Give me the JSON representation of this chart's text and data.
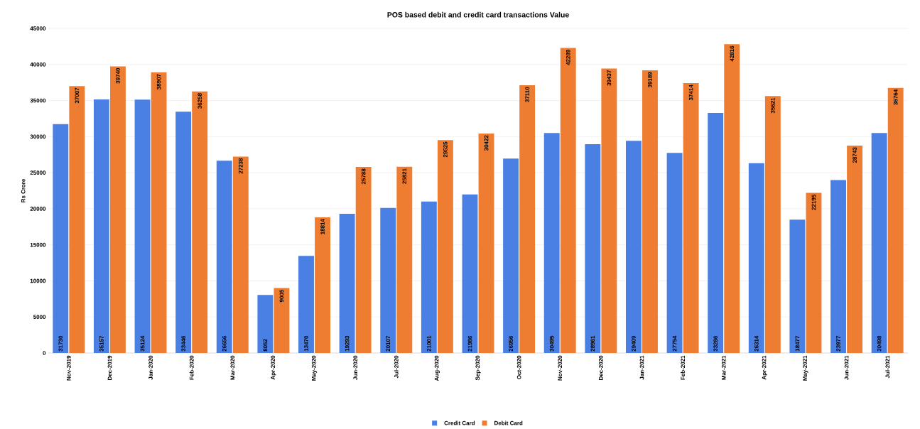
{
  "chart_data": {
    "type": "bar",
    "title": "POS based debit and credit card transactions Value",
    "ylabel": "Rs Crore",
    "categories": [
      "Nov-2019",
      "Dec-2019",
      "Jan-2020",
      "Feb-2020",
      "Mar-2020",
      "Apr-2020",
      "May-2020",
      "Jun-2020",
      "Jul-2020",
      "Aug-2020",
      "Sep-2020",
      "Oct-2020",
      "Nov-2020",
      "Dec-2020",
      "Jan-2021",
      "Feb-2021",
      "Mar-2021",
      "Apr-2021",
      "May-2021",
      "Jun-2021",
      "Jul-2021"
    ],
    "series": [
      {
        "name": "Credit Card",
        "color": "#4a7fe3",
        "values": [
          31730,
          35157,
          35124,
          33446,
          26656,
          8052,
          13470,
          19293,
          20107,
          21001,
          21986,
          26956,
          30495,
          28961,
          29409,
          27754,
          33286,
          26314,
          18477,
          23977,
          30498
        ]
      },
      {
        "name": "Debit Card",
        "color": "#ee7d31",
        "values": [
          37007,
          39740,
          38907,
          36258,
          27238,
          9005,
          18814,
          25788,
          25821,
          29525,
          30422,
          37110,
          42289,
          39437,
          39189,
          37414,
          42816,
          35621,
          22195,
          28743,
          36764
        ]
      }
    ],
    "ylim": [
      0,
      45000
    ],
    "yticks": [
      0,
      5000,
      10000,
      15000,
      20000,
      25000,
      30000,
      35000,
      40000,
      45000
    ],
    "grid": "y",
    "legend": "bottom",
    "data_labels": true
  }
}
